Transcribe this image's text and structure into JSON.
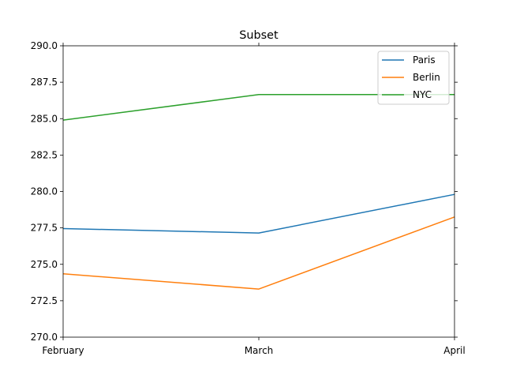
{
  "chart_data": {
    "type": "line",
    "title": "Subset",
    "xlabel": "",
    "ylabel": "",
    "categories": [
      "February",
      "March",
      "April"
    ],
    "ylim": [
      270.0,
      290.0
    ],
    "yticks": [
      "270.0",
      "272.5",
      "275.0",
      "277.5",
      "280.0",
      "282.5",
      "285.0",
      "287.5",
      "290.0"
    ],
    "yticks_values": [
      270.0,
      272.5,
      275.0,
      277.5,
      280.0,
      282.5,
      285.0,
      287.5,
      290.0
    ],
    "grid": false,
    "legend_position": "top-right",
    "series": [
      {
        "name": "Paris",
        "color": "#1f77b4",
        "values": [
          277.45,
          277.15,
          279.8
        ]
      },
      {
        "name": "Berlin",
        "color": "#ff7f0e",
        "values": [
          274.35,
          273.3,
          278.25
        ]
      },
      {
        "name": "NYC",
        "color": "#2ca02c",
        "values": [
          284.9,
          286.65,
          286.65
        ]
      }
    ]
  }
}
